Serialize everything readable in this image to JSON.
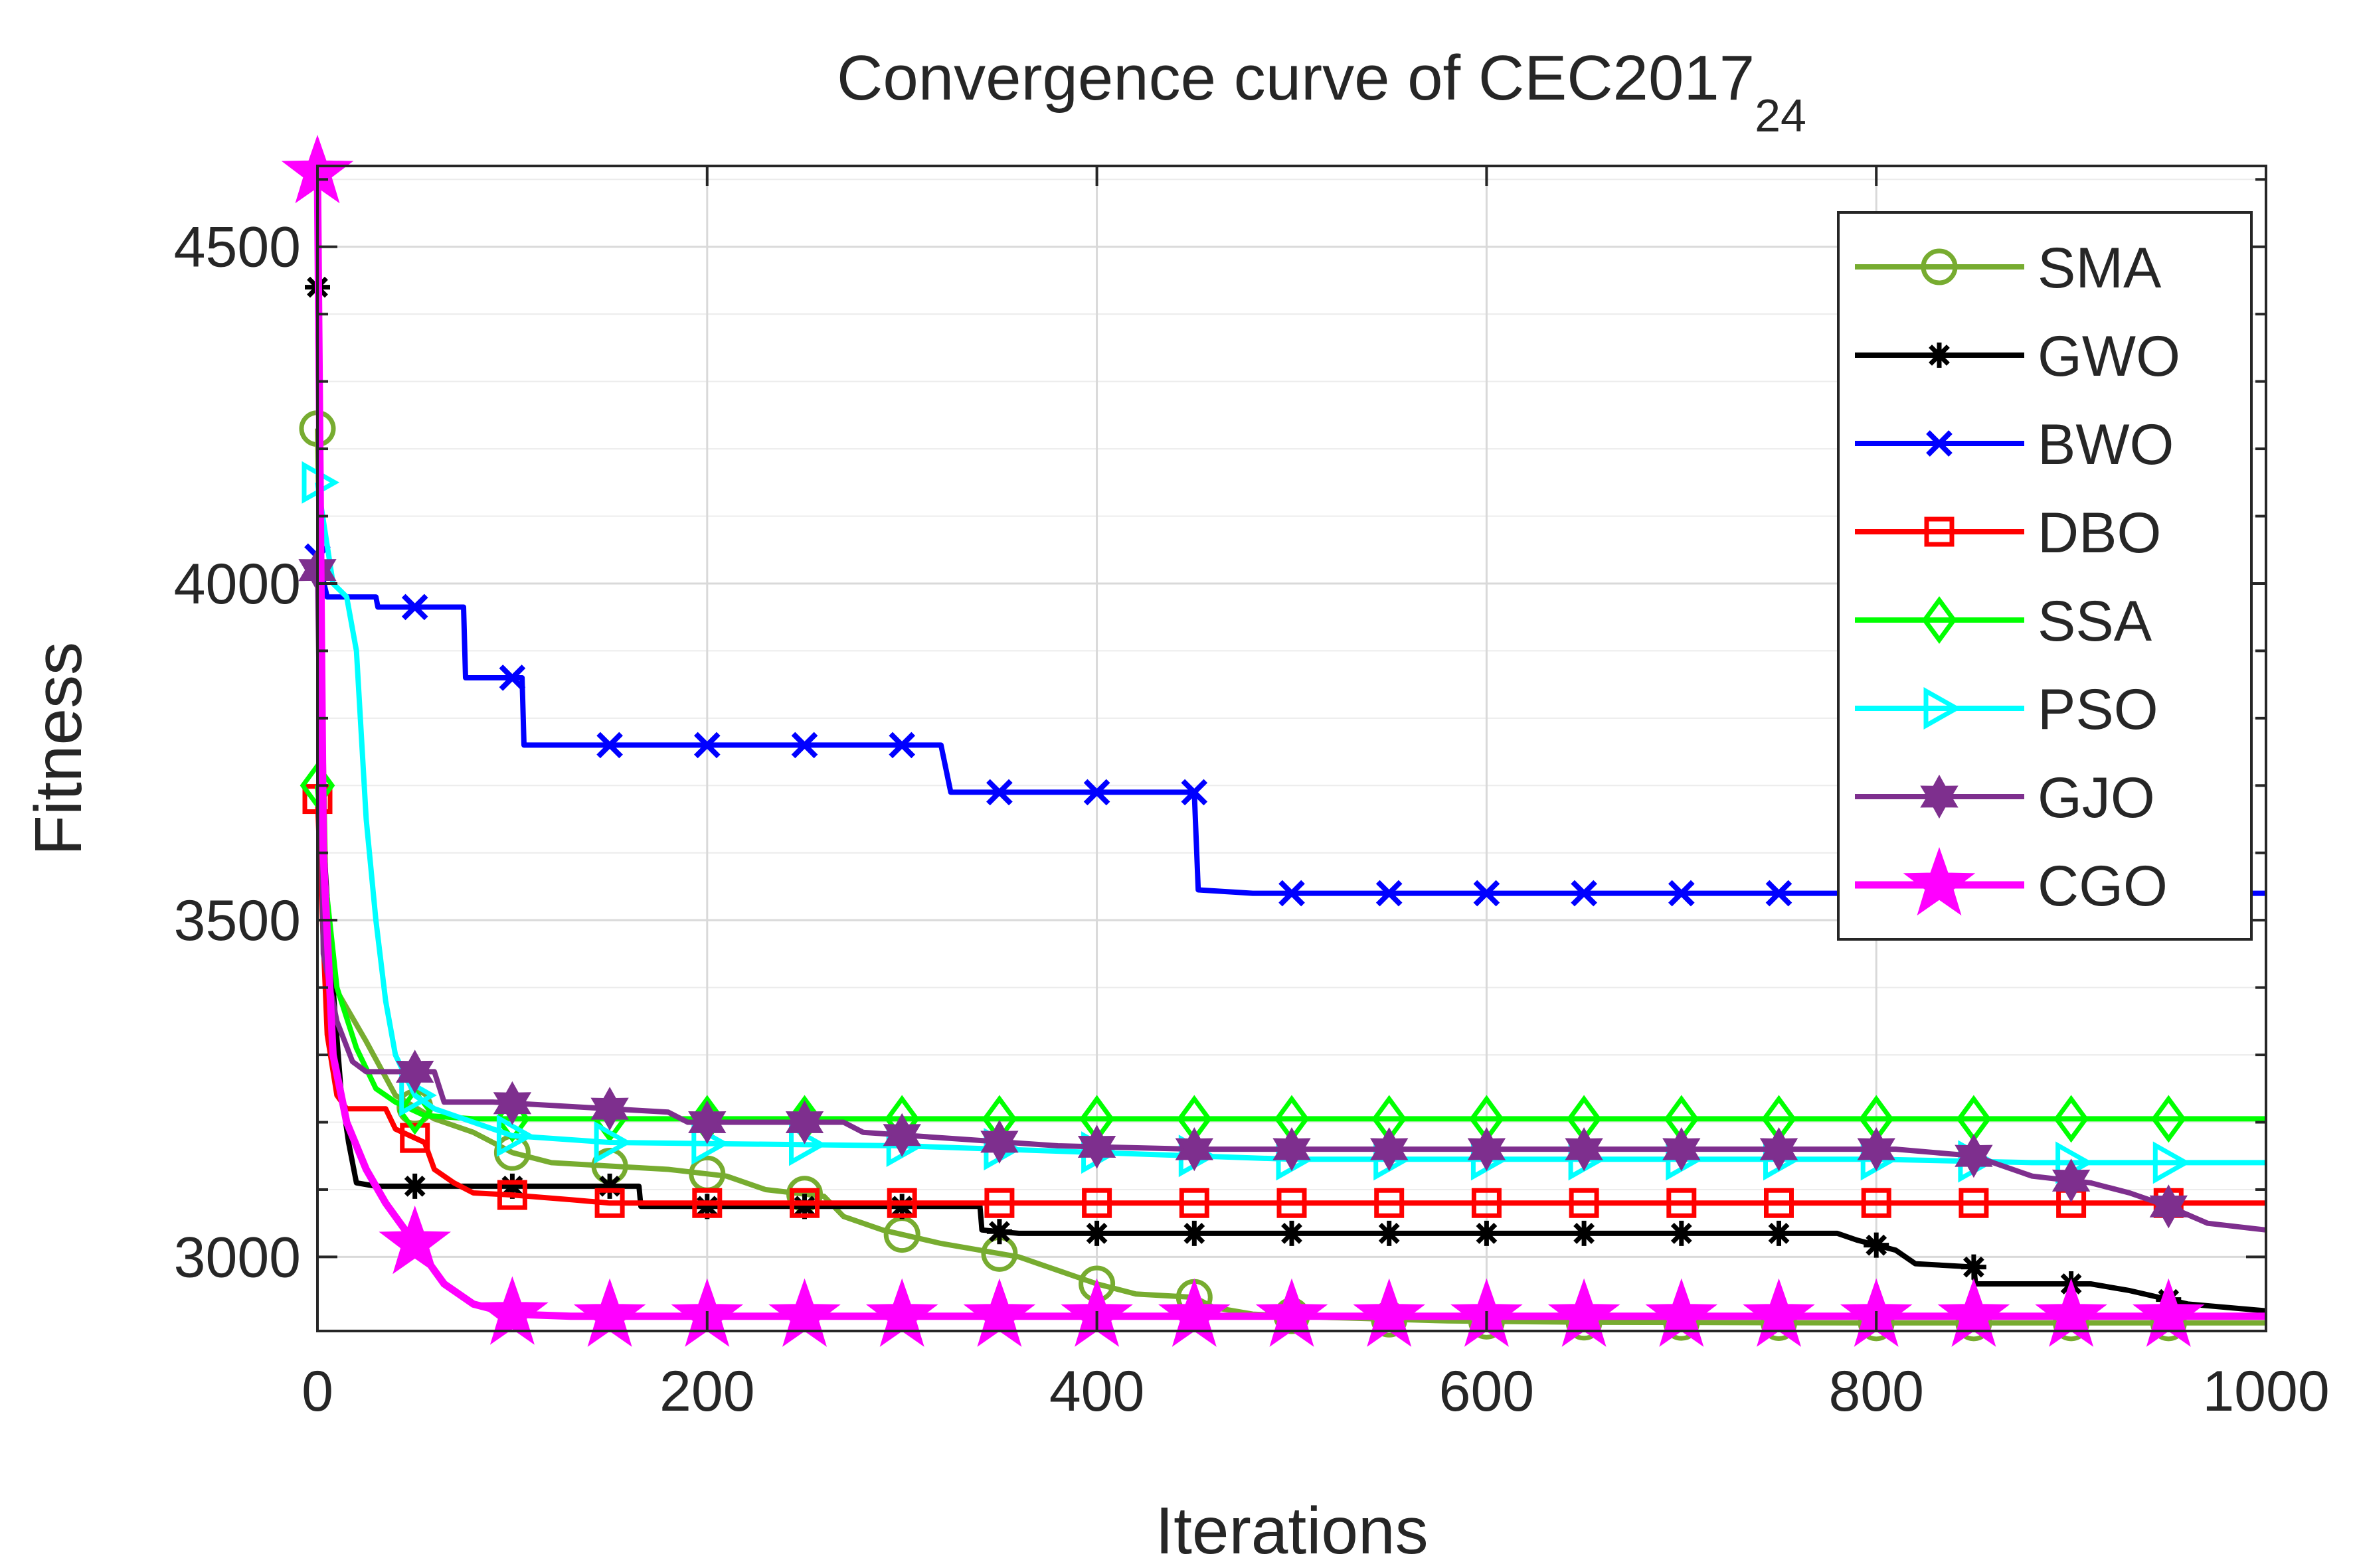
{
  "chart_data": {
    "type": "line",
    "title": "Convergence curve of CEC2017",
    "title_subscript": "24",
    "xlabel": "Iterations",
    "ylabel": "Fitness",
    "xlim": [
      0,
      1000
    ],
    "ylim": [
      2890,
      4620
    ],
    "xticks": [
      0,
      200,
      400,
      600,
      800,
      1000
    ],
    "yticks": [
      3000,
      3500,
      4000,
      4500
    ],
    "grid": true,
    "legend_position": "top-right",
    "series": [
      {
        "name": "SMA",
        "color": "#77AC30",
        "marker": "circle",
        "points": [
          [
            0,
            4230
          ],
          [
            5,
            3420
          ],
          [
            15,
            3370
          ],
          [
            25,
            3320
          ],
          [
            40,
            3240
          ],
          [
            60,
            3205
          ],
          [
            80,
            3185
          ],
          [
            100,
            3155
          ],
          [
            120,
            3140
          ],
          [
            150,
            3135
          ],
          [
            180,
            3130
          ],
          [
            210,
            3120
          ],
          [
            230,
            3100
          ],
          [
            260,
            3090
          ],
          [
            270,
            3060
          ],
          [
            290,
            3040
          ],
          [
            320,
            3020
          ],
          [
            360,
            3000
          ],
          [
            380,
            2980
          ],
          [
            400,
            2960
          ],
          [
            420,
            2945
          ],
          [
            450,
            2940
          ],
          [
            460,
            2925
          ],
          [
            480,
            2915
          ],
          [
            520,
            2910
          ],
          [
            580,
            2905
          ],
          [
            650,
            2903
          ],
          [
            800,
            2902
          ],
          [
            1000,
            2902
          ]
        ]
      },
      {
        "name": "GWO",
        "color": "#000000",
        "marker": "asterisk",
        "points": [
          [
            0,
            4440
          ],
          [
            3,
            3620
          ],
          [
            8,
            3400
          ],
          [
            12,
            3250
          ],
          [
            16,
            3170
          ],
          [
            20,
            3110
          ],
          [
            30,
            3105
          ],
          [
            100,
            3105
          ],
          [
            165,
            3105
          ],
          [
            166,
            3075
          ],
          [
            340,
            3075
          ],
          [
            341,
            3040
          ],
          [
            360,
            3035
          ],
          [
            780,
            3035
          ],
          [
            790,
            3025
          ],
          [
            810,
            3010
          ],
          [
            820,
            2990
          ],
          [
            850,
            2985
          ],
          [
            851,
            2960
          ],
          [
            910,
            2960
          ],
          [
            930,
            2950
          ],
          [
            960,
            2930
          ],
          [
            1000,
            2920
          ]
        ]
      },
      {
        "name": "BWO",
        "color": "#0000FF",
        "marker": "x",
        "points": [
          [
            0,
            4040
          ],
          [
            5,
            3980
          ],
          [
            30,
            3980
          ],
          [
            31,
            3965
          ],
          [
            75,
            3965
          ],
          [
            76,
            3860
          ],
          [
            105,
            3860
          ],
          [
            106,
            3760
          ],
          [
            320,
            3760
          ],
          [
            325,
            3690
          ],
          [
            450,
            3690
          ],
          [
            452,
            3545
          ],
          [
            480,
            3540
          ],
          [
            1000,
            3540
          ]
        ]
      },
      {
        "name": "DBO",
        "color": "#FF0000",
        "marker": "square",
        "points": [
          [
            0,
            3680
          ],
          [
            5,
            3330
          ],
          [
            10,
            3240
          ],
          [
            15,
            3220
          ],
          [
            35,
            3220
          ],
          [
            40,
            3190
          ],
          [
            55,
            3170
          ],
          [
            60,
            3130
          ],
          [
            70,
            3110
          ],
          [
            80,
            3095
          ],
          [
            100,
            3092
          ],
          [
            130,
            3085
          ],
          [
            150,
            3080
          ],
          [
            300,
            3080
          ],
          [
            1000,
            3080
          ]
        ]
      },
      {
        "name": "SSA",
        "color": "#00FF00",
        "marker": "diamond",
        "points": [
          [
            0,
            3700
          ],
          [
            4,
            3560
          ],
          [
            10,
            3400
          ],
          [
            20,
            3310
          ],
          [
            30,
            3250
          ],
          [
            40,
            3230
          ],
          [
            55,
            3210
          ],
          [
            80,
            3205
          ],
          [
            100,
            3205
          ],
          [
            200,
            3205
          ],
          [
            1000,
            3205
          ]
        ]
      },
      {
        "name": "PSO",
        "color": "#00FFFF",
        "marker": "triangle-right",
        "points": [
          [
            0,
            4150
          ],
          [
            8,
            4000
          ],
          [
            15,
            3980
          ],
          [
            20,
            3900
          ],
          [
            25,
            3650
          ],
          [
            30,
            3500
          ],
          [
            35,
            3380
          ],
          [
            40,
            3300
          ],
          [
            50,
            3240
          ],
          [
            60,
            3220
          ],
          [
            80,
            3200
          ],
          [
            100,
            3180
          ],
          [
            150,
            3170
          ],
          [
            300,
            3165
          ],
          [
            350,
            3160
          ],
          [
            500,
            3145
          ],
          [
            800,
            3145
          ],
          [
            880,
            3140
          ],
          [
            1000,
            3140
          ]
        ]
      },
      {
        "name": "GJO",
        "color": "#7E2F8E",
        "marker": "hexagram",
        "points": [
          [
            0,
            4020
          ],
          [
            3,
            3450
          ],
          [
            10,
            3350
          ],
          [
            18,
            3290
          ],
          [
            25,
            3275
          ],
          [
            60,
            3275
          ],
          [
            65,
            3230
          ],
          [
            90,
            3230
          ],
          [
            180,
            3215
          ],
          [
            190,
            3200
          ],
          [
            270,
            3200
          ],
          [
            280,
            3185
          ],
          [
            330,
            3175
          ],
          [
            380,
            3165
          ],
          [
            450,
            3160
          ],
          [
            810,
            3160
          ],
          [
            830,
            3155
          ],
          [
            850,
            3150
          ],
          [
            860,
            3140
          ],
          [
            880,
            3120
          ],
          [
            910,
            3110
          ],
          [
            930,
            3095
          ],
          [
            950,
            3075
          ],
          [
            970,
            3050
          ],
          [
            1000,
            3040
          ]
        ]
      },
      {
        "name": "CGO",
        "color": "#FF00FF",
        "marker": "pentagram",
        "points": [
          [
            0,
            4610
          ],
          [
            3,
            3600
          ],
          [
            8,
            3300
          ],
          [
            15,
            3200
          ],
          [
            25,
            3130
          ],
          [
            35,
            3080
          ],
          [
            45,
            3040
          ],
          [
            55,
            3000
          ],
          [
            65,
            2960
          ],
          [
            80,
            2930
          ],
          [
            100,
            2915
          ],
          [
            130,
            2912
          ],
          [
            1000,
            2912
          ]
        ]
      }
    ]
  }
}
